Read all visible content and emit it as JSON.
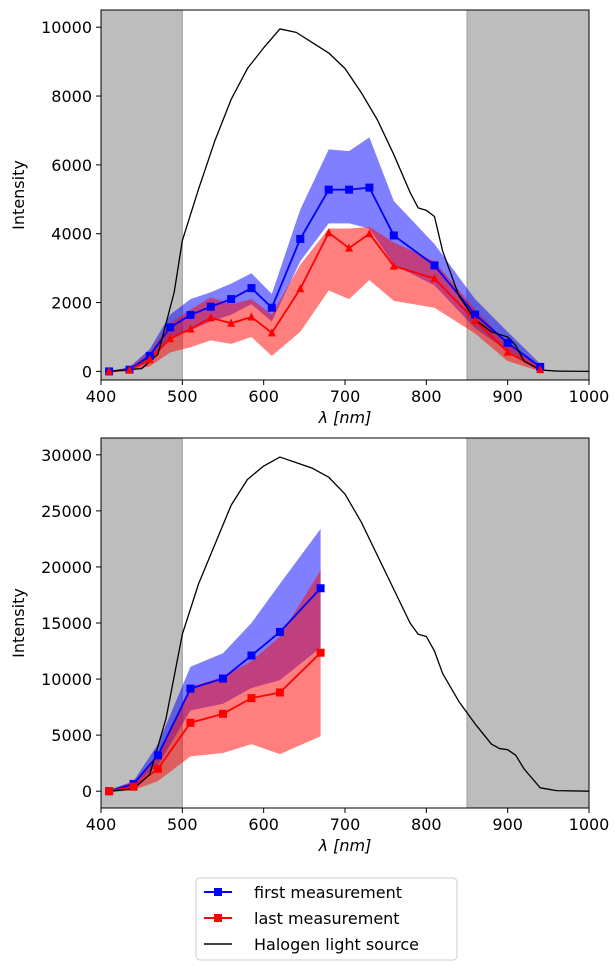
{
  "chart_data": [
    {
      "type": "line",
      "xlabel": "λ [nm]",
      "ylabel": "Intensity",
      "xlim": [
        400,
        1000
      ],
      "ylim": [
        -250,
        10500
      ],
      "x_ticks": [
        400,
        500,
        600,
        700,
        800,
        900,
        1000
      ],
      "y_ticks": [
        0,
        2000,
        4000,
        6000,
        8000,
        10000
      ],
      "shaded_regions": [
        [
          400,
          500
        ],
        [
          850,
          1000
        ]
      ],
      "grid": false,
      "series": [
        {
          "name": "first measurement",
          "color": "#0000ff",
          "marker": "square",
          "x": [
            410,
            435,
            460,
            485,
            510,
            535,
            560,
            585,
            610,
            645,
            680,
            705,
            730,
            760,
            810,
            860,
            900,
            940
          ],
          "y": [
            0,
            50,
            450,
            1280,
            1640,
            1880,
            2100,
            2420,
            1850,
            3850,
            5280,
            5280,
            5340,
            3950,
            3080,
            1650,
            830,
            130
          ],
          "band_upper": [
            10,
            120,
            650,
            1650,
            2100,
            2300,
            2550,
            2850,
            2250,
            4700,
            6450,
            6400,
            6800,
            4950,
            3700,
            2100,
            1150,
            220
          ],
          "band_lower": [
            -10,
            20,
            280,
            1000,
            1200,
            1450,
            1650,
            1950,
            1450,
            3200,
            4300,
            4300,
            4150,
            3100,
            2500,
            1250,
            600,
            60
          ]
        },
        {
          "name": "last measurement",
          "color": "#ff0000",
          "marker": "triangle",
          "x": [
            410,
            435,
            460,
            485,
            510,
            535,
            560,
            585,
            610,
            645,
            680,
            705,
            730,
            760,
            810,
            860,
            900,
            940
          ],
          "y": [
            0,
            40,
            350,
            950,
            1230,
            1560,
            1400,
            1580,
            1120,
            2400,
            4030,
            3580,
            4000,
            3060,
            2700,
            1480,
            560,
            50
          ],
          "band_upper": [
            10,
            100,
            550,
            1400,
            1800,
            2150,
            1950,
            2100,
            1650,
            3100,
            4150,
            4150,
            4200,
            3750,
            3200,
            1800,
            800,
            150
          ],
          "band_lower": [
            -10,
            10,
            150,
            550,
            700,
            900,
            800,
            1000,
            450,
            1150,
            2350,
            2100,
            2650,
            2050,
            1850,
            1100,
            300,
            0
          ]
        },
        {
          "name": "Halogen light source",
          "color": "#000000",
          "marker": "none",
          "x": [
            410,
            450,
            470,
            490,
            500,
            520,
            540,
            560,
            580,
            600,
            620,
            640,
            660,
            680,
            700,
            720,
            740,
            760,
            780,
            790,
            800,
            810,
            820,
            840,
            860,
            880,
            900,
            910,
            920,
            940,
            960,
            980,
            1000
          ],
          "y": [
            0,
            80,
            500,
            2300,
            3800,
            5300,
            6700,
            7900,
            8800,
            9400,
            9950,
            9850,
            9550,
            9250,
            8800,
            8100,
            7300,
            6300,
            5200,
            4750,
            4680,
            4500,
            3500,
            2200,
            1500,
            1150,
            1000,
            750,
            300,
            40,
            10,
            5,
            0
          ]
        }
      ]
    },
    {
      "type": "line",
      "xlabel": "λ [nm]",
      "ylabel": "Intensity",
      "xlim": [
        400,
        1000
      ],
      "ylim": [
        -1500,
        31500
      ],
      "x_ticks": [
        400,
        500,
        600,
        700,
        800,
        900,
        1000
      ],
      "y_ticks": [
        0,
        5000,
        10000,
        15000,
        20000,
        25000,
        30000
      ],
      "shaded_regions": [
        [
          400,
          500
        ],
        [
          850,
          1000
        ]
      ],
      "grid": false,
      "series": [
        {
          "name": "first measurement",
          "color": "#0000ff",
          "marker": "square",
          "x": [
            410,
            440,
            470,
            510,
            550,
            585,
            620,
            670
          ],
          "y": [
            0,
            650,
            3200,
            9150,
            10050,
            12100,
            14200,
            18100
          ],
          "band_upper": [
            100,
            900,
            4200,
            11100,
            12300,
            15000,
            18500,
            23400
          ],
          "band_lower": [
            -100,
            450,
            2300,
            7200,
            7800,
            9200,
            9900,
            12800
          ]
        },
        {
          "name": "last measurement",
          "color": "#ff0000",
          "marker": "square",
          "x": [
            410,
            440,
            470,
            510,
            550,
            585,
            620,
            670
          ],
          "y": [
            0,
            400,
            2000,
            6100,
            6900,
            8300,
            8800,
            12350
          ],
          "band_upper": [
            100,
            800,
            3300,
            9300,
            10200,
            11600,
            13800,
            19700
          ],
          "band_lower": [
            -100,
            100,
            900,
            3100,
            3400,
            4200,
            3300,
            4900
          ]
        },
        {
          "name": "Halogen light source",
          "color": "#000000",
          "marker": "none",
          "x": [
            410,
            440,
            460,
            480,
            500,
            520,
            540,
            560,
            580,
            600,
            620,
            640,
            660,
            680,
            700,
            720,
            740,
            760,
            780,
            790,
            800,
            810,
            820,
            840,
            860,
            880,
            890,
            900,
            910,
            920,
            940,
            960,
            1000
          ],
          "y": [
            0,
            200,
            1500,
            6500,
            14000,
            18500,
            22000,
            25500,
            27800,
            29000,
            29800,
            29300,
            28800,
            28000,
            26500,
            24000,
            21000,
            18000,
            15000,
            14000,
            13800,
            12500,
            10500,
            8000,
            6000,
            4200,
            3800,
            3700,
            3200,
            2000,
            300,
            50,
            0
          ]
        }
      ]
    }
  ],
  "legend": {
    "placement": "bottom-center",
    "entries": [
      {
        "label": "first measurement",
        "color": "#0000ff",
        "marker": "square"
      },
      {
        "label": "last measurement",
        "color": "#ff0000",
        "marker": "square"
      },
      {
        "label": "Halogen light source",
        "color": "#000000",
        "marker": "none"
      }
    ]
  }
}
